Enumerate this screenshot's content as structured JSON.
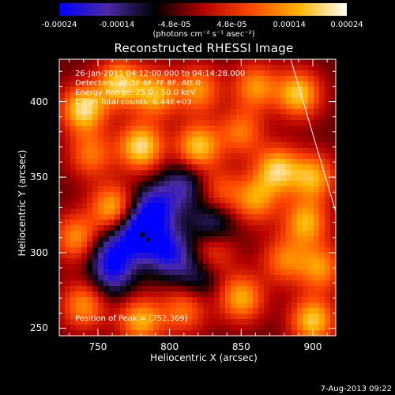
{
  "colorbar": {
    "ticks": [
      "-0.00024",
      "-0.00014",
      "-4.8e-05",
      "4.8e-05",
      "0.00014",
      "0.00024"
    ],
    "units": "(photons cm⁻² s⁻¹ asec⁻²)"
  },
  "info": {
    "time_range": "26-Jan-2011 04:12:00.000 to 04:14:28.000",
    "detectors": "Detectors: 4F 5F 6F 7F 8F, Att 0",
    "energy": "Energy Range: 25.0 - 50.0 keV",
    "clean": "Clean     Total counts: 6.44E+03",
    "peak": "Position of Peak = [752,369]"
  },
  "stamp": "7-Aug-2013 09:22",
  "chart_data": {
    "type": "heatmap",
    "title": "Reconstructed RHESSI Image",
    "xlabel": "Heliocentric X (arcsec)",
    "ylabel": "Heliocentric Y (arcsec)",
    "xlim": [
      723,
      916
    ],
    "ylim": [
      245,
      428
    ],
    "x_ticks": [
      750,
      800,
      850,
      900
    ],
    "y_ticks": [
      250,
      300,
      350,
      400
    ],
    "colorbar_range": [
      -0.00024,
      0.00024
    ],
    "colormap": [
      "#0000ff",
      "#4b2aa5",
      "#000000",
      "#b40000",
      "#ff4800",
      "#ffb400",
      "#ffffff"
    ],
    "features": [
      {
        "x": 765,
        "y": 412,
        "v": 0.9
      },
      {
        "x": 740,
        "y": 395,
        "v": 1.0
      },
      {
        "x": 790,
        "y": 405,
        "v": 0.8
      },
      {
        "x": 820,
        "y": 408,
        "v": 0.7
      },
      {
        "x": 860,
        "y": 410,
        "v": 0.7
      },
      {
        "x": 780,
        "y": 370,
        "v": 1.0
      },
      {
        "x": 745,
        "y": 365,
        "v": 0.6
      },
      {
        "x": 820,
        "y": 370,
        "v": 0.9
      },
      {
        "x": 850,
        "y": 380,
        "v": 0.6
      },
      {
        "x": 890,
        "y": 405,
        "v": 0.9
      },
      {
        "x": 900,
        "y": 350,
        "v": 0.8
      },
      {
        "x": 875,
        "y": 355,
        "v": 0.9
      },
      {
        "x": 860,
        "y": 335,
        "v": 0.7
      },
      {
        "x": 895,
        "y": 320,
        "v": 0.8
      },
      {
        "x": 905,
        "y": 290,
        "v": 0.7
      },
      {
        "x": 880,
        "y": 295,
        "v": 0.6
      },
      {
        "x": 850,
        "y": 270,
        "v": 0.8
      },
      {
        "x": 900,
        "y": 255,
        "v": 0.9
      },
      {
        "x": 830,
        "y": 300,
        "v": 0.5
      },
      {
        "x": 760,
        "y": 330,
        "v": 0.8
      },
      {
        "x": 735,
        "y": 310,
        "v": 0.7
      },
      {
        "x": 740,
        "y": 265,
        "v": 0.7
      },
      {
        "x": 780,
        "y": 255,
        "v": 0.8
      },
      {
        "x": 810,
        "y": 262,
        "v": 0.6
      },
      {
        "x": 835,
        "y": 340,
        "v": 0.5
      },
      {
        "x": 780,
        "y": 313,
        "v": -1.0
      },
      {
        "x": 790,
        "y": 330,
        "v": -0.7
      },
      {
        "x": 800,
        "y": 300,
        "v": -0.7
      },
      {
        "x": 760,
        "y": 300,
        "v": -0.6
      },
      {
        "x": 830,
        "y": 320,
        "v": -0.5
      },
      {
        "x": 810,
        "y": 345,
        "v": -0.5
      },
      {
        "x": 760,
        "y": 285,
        "v": -0.5
      },
      {
        "x": 820,
        "y": 285,
        "v": -0.4
      }
    ]
  }
}
